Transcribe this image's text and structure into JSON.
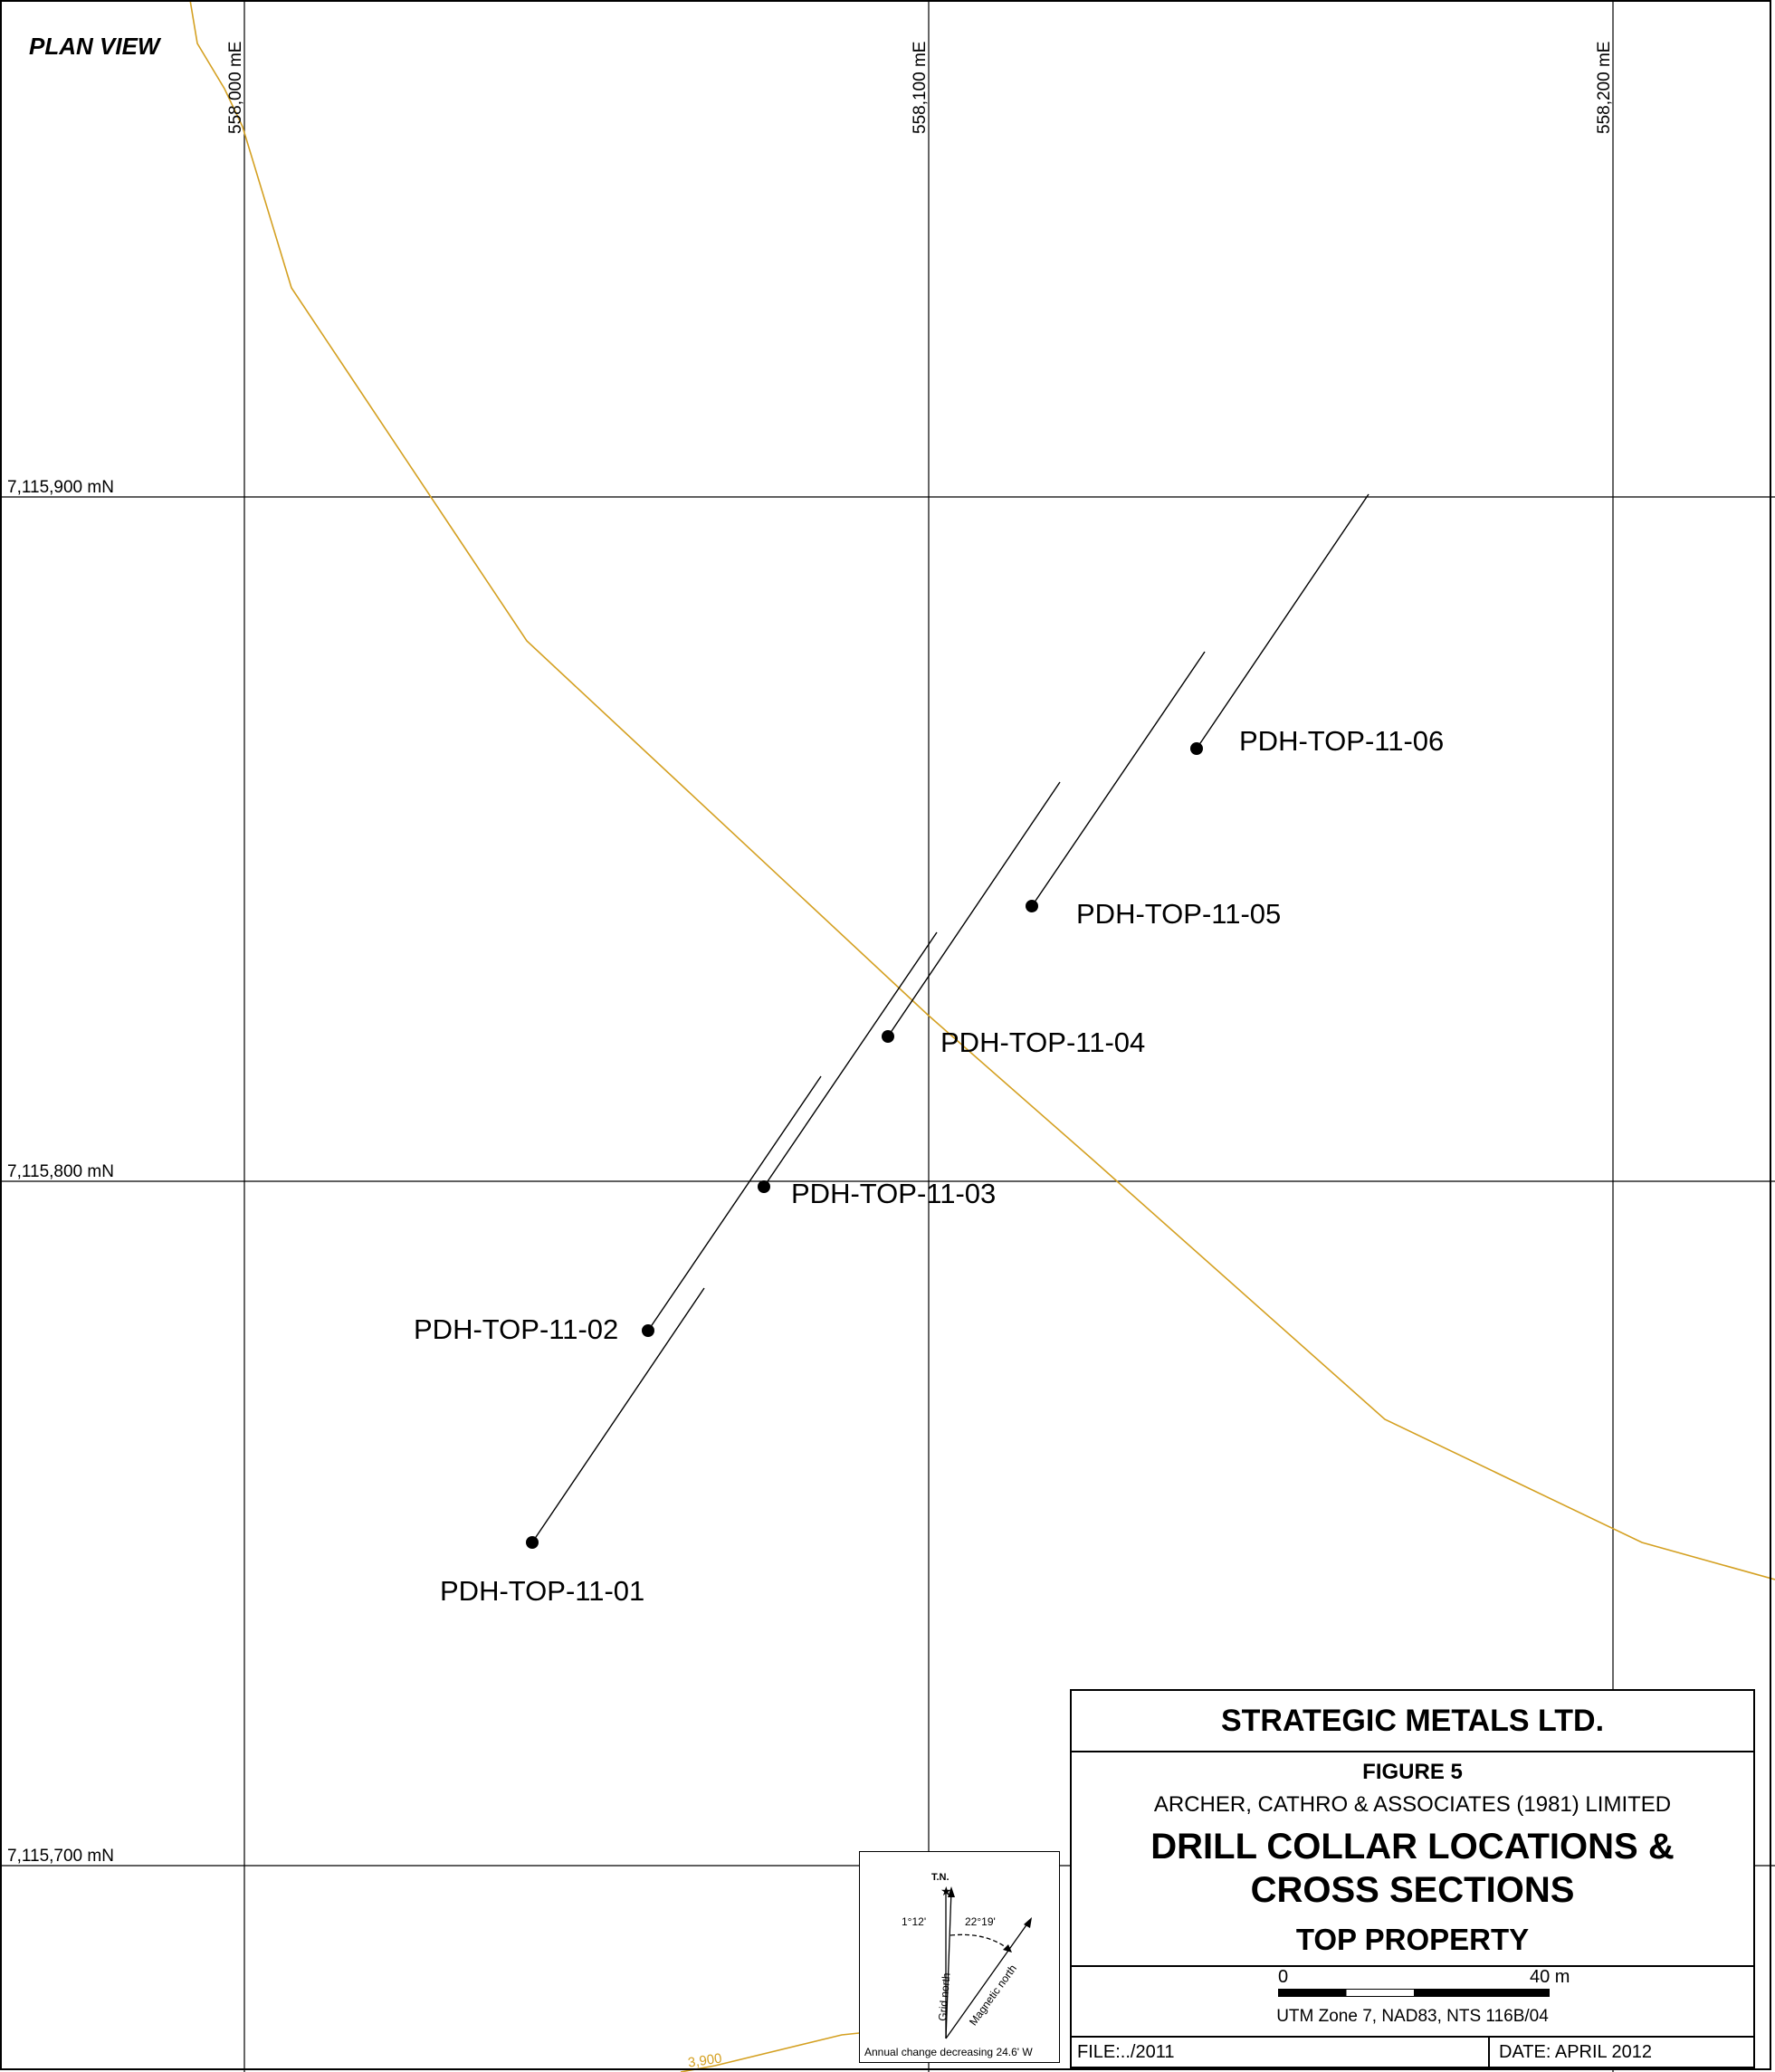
{
  "map": {
    "view_label": "PLAN VIEW",
    "eastings": [
      "558,000 mE",
      "558,100 mE",
      "558,200 mE"
    ],
    "northings": [
      "7,115,900 mN",
      "7,115,800 mN",
      "7,115,700 mN"
    ],
    "contour_label": "3,900",
    "colors": {
      "contour": "#d4a021",
      "grid": "#000000",
      "trace": "#000000"
    },
    "drill_holes": [
      {
        "id": "PDH-TOP-11-01"
      },
      {
        "id": "PDH-TOP-11-02"
      },
      {
        "id": "PDH-TOP-11-03"
      },
      {
        "id": "PDH-TOP-11-04"
      },
      {
        "id": "PDH-TOP-11-05"
      },
      {
        "id": "PDH-TOP-11-06"
      }
    ]
  },
  "compass": {
    "true_north": "T.N.",
    "grid_north": "Grid north",
    "magnetic_north": "Magnetic north",
    "grid_angle": "1°12'",
    "magnetic_angle": "22°19'",
    "annual_change": "Annual change decreasing 24.6' W"
  },
  "title_block": {
    "company": "STRATEGIC METALS LTD.",
    "figure": "FIGURE 5",
    "consultant": "ARCHER, CATHRO & ASSOCIATES (1981) LIMITED",
    "title_line1": "DRILL COLLAR LOCATIONS &",
    "title_line2": "CROSS SECTIONS",
    "property": "TOP PROPERTY",
    "scale_start": "0",
    "scale_end": "40 m",
    "projection": "UTM Zone 7, NAD83, NTS 116B/04",
    "file": "FILE:../2011",
    "date": "DATE:  APRIL 2012"
  }
}
